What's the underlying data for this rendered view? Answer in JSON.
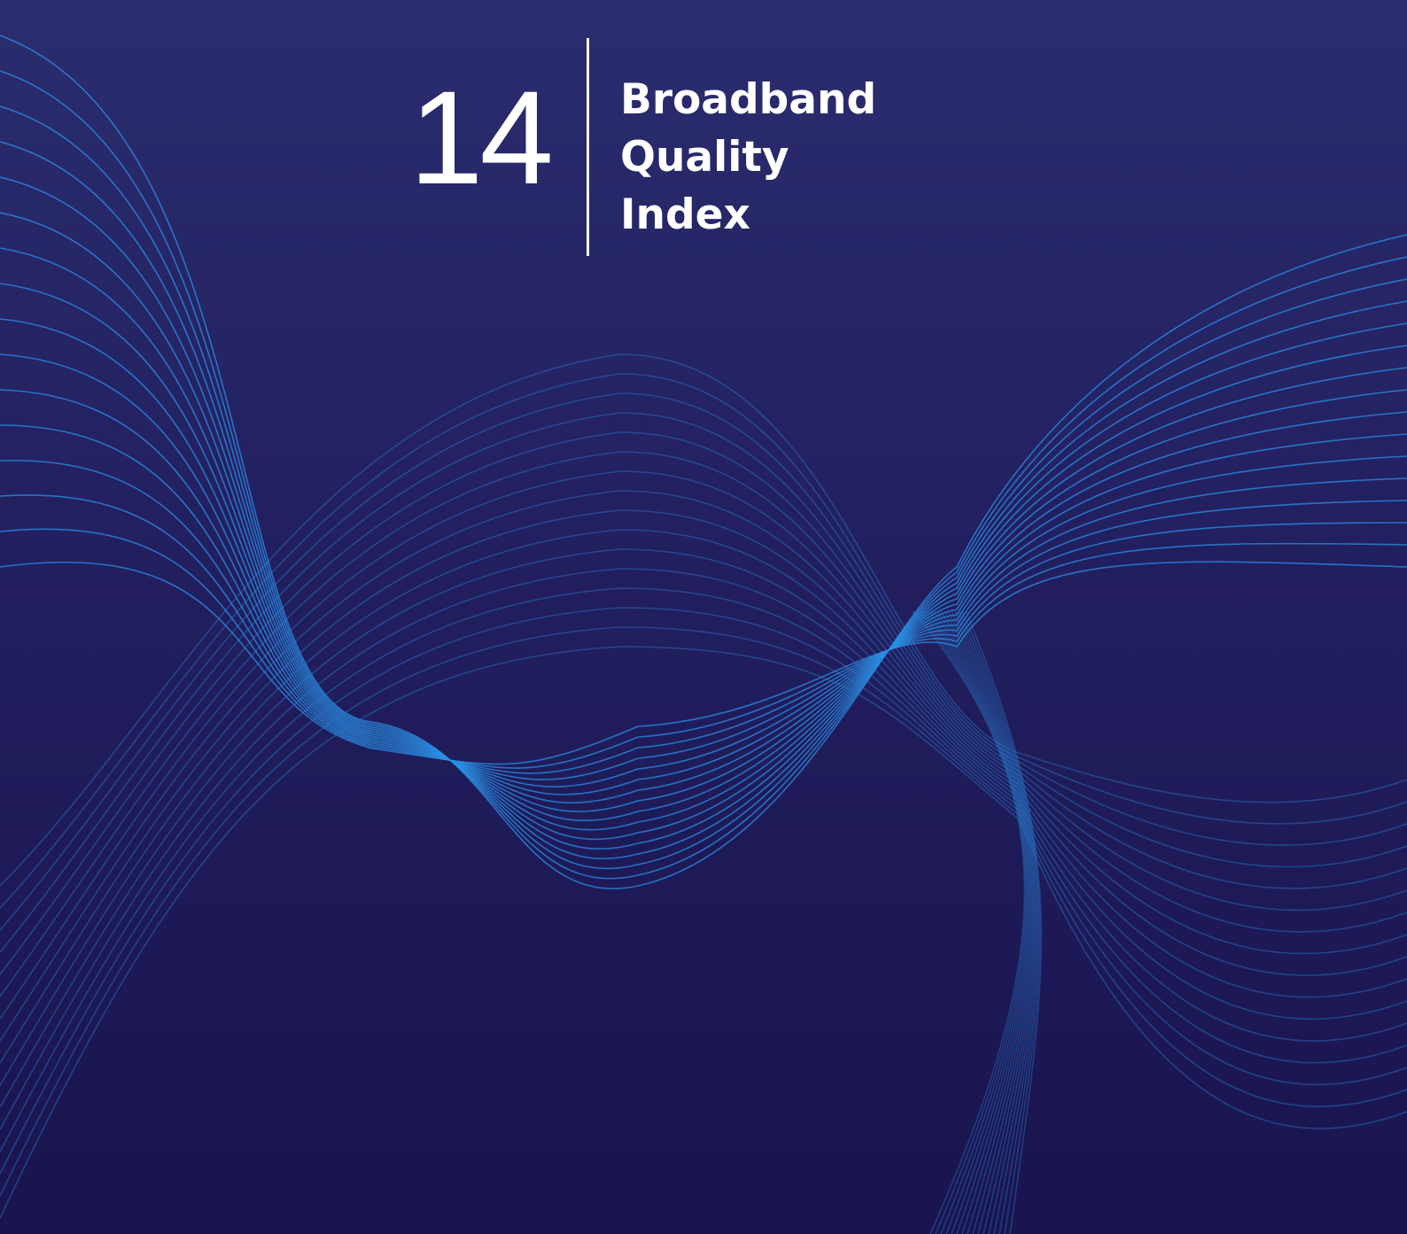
{
  "section": {
    "number": "14",
    "title_lines": [
      "Broadband",
      "Quality",
      "Index"
    ]
  }
}
